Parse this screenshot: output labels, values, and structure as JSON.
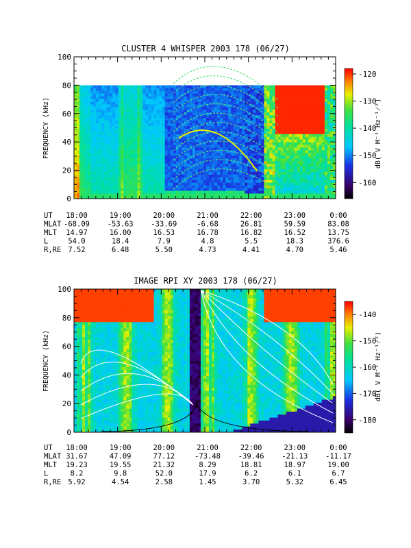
{
  "chart_data": [
    {
      "type": "heatmap",
      "title": "CLUSTER 4 WHISPER 2003 178 (06/27)",
      "ylabel": "FREQUENCY (kHz)",
      "ylim": [
        0,
        100
      ],
      "yticks": [
        "0",
        "20",
        "40",
        "60",
        "80",
        "100"
      ],
      "x_ticks": [
        "18:00",
        "19:00",
        "20:00",
        "21:00",
        "22:00",
        "23:00",
        "0:00"
      ],
      "data_top_khz": 80,
      "colorbar": {
        "label": "dB( V M⁻¹ Hz⁻¹⁄²)",
        "range": [
          -166,
          -118
        ],
        "ticks": [
          "-120",
          "-130",
          "-140",
          "-150",
          "-160"
        ],
        "tick_values": [
          -120,
          -130,
          -140,
          -150,
          -160
        ]
      },
      "ephemeris": [
        {
          "label": "UT",
          "values": [
            "18:00",
            "19:00",
            "20:00",
            "21:00",
            "22:00",
            "23:00",
            "0:00"
          ]
        },
        {
          "label": "MLAT",
          "values": [
            "-68.09",
            "-53.63",
            "-33.69",
            "-6.68",
            "26.81",
            "59.59",
            "83.08"
          ]
        },
        {
          "label": "MLT",
          "values": [
            "14.97",
            "16.00",
            "16.53",
            "16.78",
            "16.82",
            "16.52",
            "13.75"
          ]
        },
        {
          "label": "L",
          "values": [
            "54.0",
            "18.4",
            "7.9",
            "4.8",
            "5.5",
            "18.3",
            "376.6"
          ]
        },
        {
          "label": "R,RE",
          "values": [
            "7.52",
            "6.48",
            "5.50",
            "4.73",
            "4.41",
            "4.70",
            "5.46"
          ]
        }
      ]
    },
    {
      "type": "heatmap",
      "title": "IMAGE RPI XY 2003 178 (06/27)",
      "ylabel": "FREQUENCY (kHz)",
      "ylim": [
        0,
        100
      ],
      "yticks": [
        "0",
        "20",
        "40",
        "60",
        "80",
        "100"
      ],
      "x_ticks": [
        "18:00",
        "19:00",
        "20:00",
        "21:00",
        "22:00",
        "23:00",
        "0:00"
      ],
      "data_top_khz": 100,
      "colorbar": {
        "label": "dB( V M⁻¹ Hz⁻¹⁄²)",
        "range": [
          -185,
          -135
        ],
        "ticks": [
          "-140",
          "-150",
          "-160",
          "-170",
          "-180"
        ],
        "tick_values": [
          -140,
          -150,
          -160,
          -170,
          -180
        ]
      },
      "ephemeris": [
        {
          "label": "UT",
          "values": [
            "18:00",
            "19:00",
            "20:00",
            "21:00",
            "22:00",
            "23:00",
            "0:00"
          ]
        },
        {
          "label": "MLAT",
          "values": [
            "31.67",
            "47.09",
            "77.12",
            "-73.48",
            "-39.46",
            "-21.13",
            "-11.17"
          ]
        },
        {
          "label": "MLT",
          "values": [
            "19.23",
            "19.55",
            "21.32",
            "8.29",
            "18.81",
            "18.97",
            "19.00"
          ]
        },
        {
          "label": "L",
          "values": [
            "8.2",
            "9.8",
            "52.0",
            "17.9",
            "6.2",
            "6.1",
            "6.7"
          ]
        },
        {
          "label": "R,RE",
          "values": [
            "5.92",
            "4.54",
            "2.58",
            "1.45",
            "3.70",
            "5.32",
            "6.45"
          ]
        }
      ]
    }
  ]
}
